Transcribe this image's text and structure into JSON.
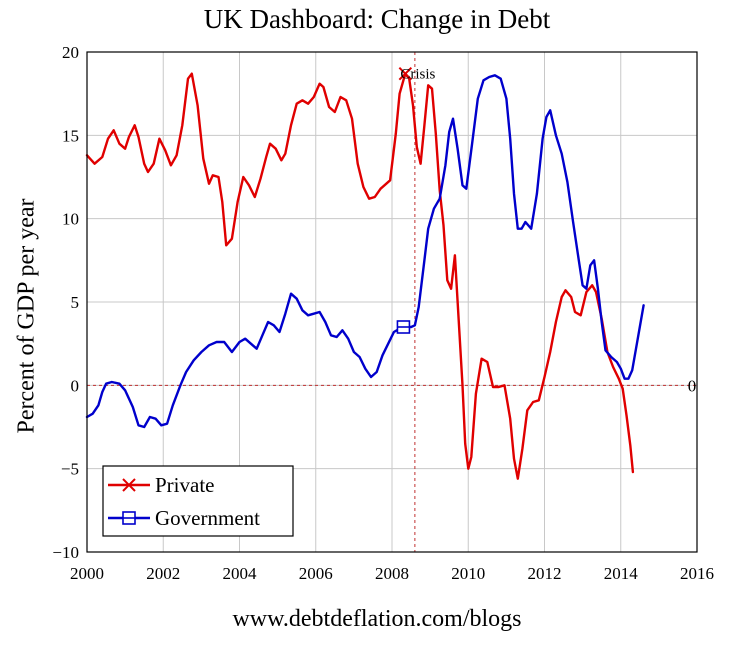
{
  "chart_data": {
    "type": "line",
    "title": "UK Dashboard: Change in Debt",
    "ylabel": "Percent of GDP per year",
    "xlabel": "",
    "xlim": [
      2000,
      2016
    ],
    "ylim": [
      -10,
      20
    ],
    "xticks": [
      "2000",
      "2002",
      "2004",
      "2006",
      "2008",
      "2010",
      "2012",
      "2014",
      "2016"
    ],
    "yticks": [
      "20",
      "15",
      "10",
      "5",
      "0",
      "−5",
      "−10"
    ],
    "grid": true,
    "legend_position": "bottom-left",
    "series": [
      {
        "name": "Private",
        "color": "#e00000",
        "marker": "x",
        "points": [
          [
            2000.0,
            13.8
          ],
          [
            2000.2,
            13.3
          ],
          [
            2000.4,
            13.7
          ],
          [
            2000.55,
            14.8
          ],
          [
            2000.7,
            15.3
          ],
          [
            2000.85,
            14.5
          ],
          [
            2001.0,
            14.2
          ],
          [
            2001.1,
            14.9
          ],
          [
            2001.25,
            15.6
          ],
          [
            2001.35,
            14.9
          ],
          [
            2001.5,
            13.3
          ],
          [
            2001.6,
            12.8
          ],
          [
            2001.75,
            13.3
          ],
          [
            2001.9,
            14.8
          ],
          [
            2002.05,
            14.1
          ],
          [
            2002.2,
            13.2
          ],
          [
            2002.35,
            13.8
          ],
          [
            2002.5,
            15.6
          ],
          [
            2002.65,
            18.4
          ],
          [
            2002.75,
            18.7
          ],
          [
            2002.9,
            16.8
          ],
          [
            2003.05,
            13.6
          ],
          [
            2003.2,
            12.1
          ],
          [
            2003.3,
            12.6
          ],
          [
            2003.45,
            12.5
          ],
          [
            2003.55,
            11.0
          ],
          [
            2003.65,
            8.4
          ],
          [
            2003.8,
            8.8
          ],
          [
            2003.95,
            11.0
          ],
          [
            2004.1,
            12.5
          ],
          [
            2004.25,
            12.0
          ],
          [
            2004.4,
            11.3
          ],
          [
            2004.55,
            12.4
          ],
          [
            2004.7,
            13.7
          ],
          [
            2004.8,
            14.5
          ],
          [
            2004.95,
            14.2
          ],
          [
            2005.1,
            13.5
          ],
          [
            2005.2,
            13.9
          ],
          [
            2005.35,
            15.6
          ],
          [
            2005.5,
            16.9
          ],
          [
            2005.65,
            17.1
          ],
          [
            2005.8,
            16.9
          ],
          [
            2005.95,
            17.3
          ],
          [
            2006.1,
            18.1
          ],
          [
            2006.2,
            17.9
          ],
          [
            2006.35,
            16.7
          ],
          [
            2006.5,
            16.4
          ],
          [
            2006.65,
            17.3
          ],
          [
            2006.8,
            17.1
          ],
          [
            2006.95,
            16.0
          ],
          [
            2007.1,
            13.3
          ],
          [
            2007.25,
            11.9
          ],
          [
            2007.4,
            11.2
          ],
          [
            2007.55,
            11.3
          ],
          [
            2007.7,
            11.8
          ],
          [
            2007.85,
            12.1
          ],
          [
            2007.95,
            12.3
          ],
          [
            2008.1,
            15.1
          ],
          [
            2008.2,
            17.5
          ],
          [
            2008.35,
            18.7
          ],
          [
            2008.45,
            18.4
          ],
          [
            2008.55,
            16.8
          ],
          [
            2008.65,
            14.3
          ],
          [
            2008.75,
            13.3
          ],
          [
            2008.85,
            15.6
          ],
          [
            2008.95,
            18.0
          ],
          [
            2009.05,
            17.8
          ],
          [
            2009.15,
            15.1
          ],
          [
            2009.25,
            11.7
          ],
          [
            2009.35,
            9.6
          ],
          [
            2009.45,
            6.3
          ],
          [
            2009.55,
            5.8
          ],
          [
            2009.65,
            7.8
          ],
          [
            2009.75,
            3.9
          ],
          [
            2009.85,
            0.0
          ],
          [
            2009.92,
            -3.5
          ],
          [
            2010.0,
            -5.0
          ],
          [
            2010.08,
            -4.3
          ],
          [
            2010.2,
            -0.5
          ],
          [
            2010.35,
            1.6
          ],
          [
            2010.5,
            1.4
          ],
          [
            2010.65,
            -0.1
          ],
          [
            2010.8,
            -0.1
          ],
          [
            2010.95,
            0.0
          ],
          [
            2011.1,
            -2.0
          ],
          [
            2011.2,
            -4.4
          ],
          [
            2011.3,
            -5.6
          ],
          [
            2011.42,
            -3.8
          ],
          [
            2011.55,
            -1.5
          ],
          [
            2011.7,
            -1.0
          ],
          [
            2011.85,
            -0.9
          ],
          [
            2012.0,
            0.5
          ],
          [
            2012.15,
            2.0
          ],
          [
            2012.3,
            3.8
          ],
          [
            2012.45,
            5.3
          ],
          [
            2012.55,
            5.7
          ],
          [
            2012.7,
            5.3
          ],
          [
            2012.8,
            4.4
          ],
          [
            2012.95,
            4.2
          ],
          [
            2013.1,
            5.6
          ],
          [
            2013.25,
            6.0
          ],
          [
            2013.35,
            5.6
          ],
          [
            2013.5,
            4.0
          ],
          [
            2013.65,
            2.0
          ],
          [
            2013.8,
            1.1
          ],
          [
            2013.95,
            0.4
          ],
          [
            2014.05,
            -0.2
          ],
          [
            2014.15,
            -1.8
          ],
          [
            2014.25,
            -3.6
          ],
          [
            2014.32,
            -5.2
          ]
        ]
      },
      {
        "name": "Government",
        "color": "#0000cc",
        "marker": "square",
        "points": [
          [
            2000.0,
            -1.9
          ],
          [
            2000.15,
            -1.7
          ],
          [
            2000.3,
            -1.2
          ],
          [
            2000.4,
            -0.4
          ],
          [
            2000.5,
            0.1
          ],
          [
            2000.65,
            0.2
          ],
          [
            2000.85,
            0.1
          ],
          [
            2001.0,
            -0.3
          ],
          [
            2001.2,
            -1.3
          ],
          [
            2001.35,
            -2.4
          ],
          [
            2001.5,
            -2.5
          ],
          [
            2001.65,
            -1.9
          ],
          [
            2001.8,
            -2.0
          ],
          [
            2001.95,
            -2.4
          ],
          [
            2002.1,
            -2.3
          ],
          [
            2002.25,
            -1.2
          ],
          [
            2002.45,
            0.0
          ],
          [
            2002.6,
            0.8
          ],
          [
            2002.8,
            1.5
          ],
          [
            2003.0,
            2.0
          ],
          [
            2003.2,
            2.4
          ],
          [
            2003.4,
            2.6
          ],
          [
            2003.6,
            2.6
          ],
          [
            2003.8,
            2.0
          ],
          [
            2004.0,
            2.6
          ],
          [
            2004.15,
            2.8
          ],
          [
            2004.3,
            2.5
          ],
          [
            2004.45,
            2.2
          ],
          [
            2004.6,
            3.0
          ],
          [
            2004.75,
            3.8
          ],
          [
            2004.9,
            3.6
          ],
          [
            2005.05,
            3.2
          ],
          [
            2005.2,
            4.3
          ],
          [
            2005.35,
            5.5
          ],
          [
            2005.5,
            5.2
          ],
          [
            2005.65,
            4.5
          ],
          [
            2005.8,
            4.2
          ],
          [
            2005.95,
            4.3
          ],
          [
            2006.1,
            4.4
          ],
          [
            2006.25,
            3.8
          ],
          [
            2006.4,
            3.0
          ],
          [
            2006.55,
            2.9
          ],
          [
            2006.7,
            3.3
          ],
          [
            2006.85,
            2.8
          ],
          [
            2007.0,
            2.0
          ],
          [
            2007.15,
            1.7
          ],
          [
            2007.3,
            1.0
          ],
          [
            2007.45,
            0.5
          ],
          [
            2007.6,
            0.8
          ],
          [
            2007.75,
            1.8
          ],
          [
            2007.9,
            2.5
          ],
          [
            2008.05,
            3.2
          ],
          [
            2008.2,
            3.4
          ],
          [
            2008.35,
            3.5
          ],
          [
            2008.5,
            3.5
          ],
          [
            2008.6,
            3.6
          ],
          [
            2008.7,
            4.7
          ],
          [
            2008.85,
            7.5
          ],
          [
            2008.95,
            9.4
          ],
          [
            2009.1,
            10.6
          ],
          [
            2009.25,
            11.2
          ],
          [
            2009.4,
            13.2
          ],
          [
            2009.5,
            15.2
          ],
          [
            2009.6,
            16.0
          ],
          [
            2009.72,
            14.2
          ],
          [
            2009.85,
            12.0
          ],
          [
            2009.95,
            11.8
          ],
          [
            2010.1,
            14.5
          ],
          [
            2010.25,
            17.2
          ],
          [
            2010.4,
            18.3
          ],
          [
            2010.55,
            18.5
          ],
          [
            2010.7,
            18.6
          ],
          [
            2010.85,
            18.4
          ],
          [
            2011.0,
            17.2
          ],
          [
            2011.1,
            14.8
          ],
          [
            2011.2,
            11.5
          ],
          [
            2011.3,
            9.4
          ],
          [
            2011.4,
            9.4
          ],
          [
            2011.5,
            9.8
          ],
          [
            2011.65,
            9.4
          ],
          [
            2011.8,
            11.5
          ],
          [
            2011.95,
            14.8
          ],
          [
            2012.05,
            16.1
          ],
          [
            2012.15,
            16.5
          ],
          [
            2012.3,
            15.0
          ],
          [
            2012.45,
            13.9
          ],
          [
            2012.6,
            12.2
          ],
          [
            2012.75,
            9.8
          ],
          [
            2012.9,
            7.5
          ],
          [
            2013.0,
            6.0
          ],
          [
            2013.1,
            5.8
          ],
          [
            2013.2,
            7.2
          ],
          [
            2013.3,
            7.5
          ],
          [
            2013.4,
            5.8
          ],
          [
            2013.5,
            3.8
          ],
          [
            2013.6,
            2.1
          ],
          [
            2013.75,
            1.7
          ],
          [
            2013.9,
            1.4
          ],
          [
            2014.0,
            1.0
          ],
          [
            2014.1,
            0.4
          ],
          [
            2014.2,
            0.4
          ],
          [
            2014.3,
            0.9
          ],
          [
            2014.4,
            2.2
          ],
          [
            2014.5,
            3.5
          ],
          [
            2014.6,
            4.8
          ]
        ]
      }
    ],
    "reference_lines": [
      {
        "axis": "y",
        "value": 0,
        "label": "0",
        "color": "#c03030"
      },
      {
        "axis": "x",
        "value": 2008.6,
        "color": "#c03030"
      }
    ],
    "annotation": {
      "text": "Crisis",
      "x": 2008.35,
      "y": 18.7
    },
    "source": "www.debtdeflation.com/blogs"
  }
}
